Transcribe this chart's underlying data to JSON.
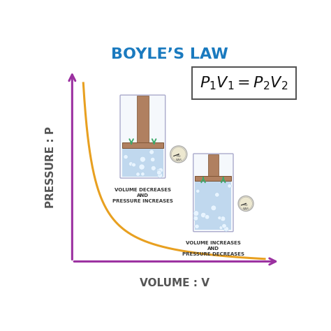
{
  "title": "BOYLE’S LAW",
  "title_color": "#1a7abf",
  "title_fontsize": 16,
  "bg_color": "#ffffff",
  "curve_color": "#e8a020",
  "curve_lw": 2.2,
  "axis_color": "#9b30a0",
  "axis_lw": 2.2,
  "xlabel": "VOLUME : V",
  "ylabel": "PRESSURE : P",
  "label_fontsize": 11,
  "label_color": "#555555",
  "formula": "$P_1V_1=P_2V_2$",
  "formula_fontsize": 16,
  "formula_box_color": "#ffffff",
  "formula_box_edge": "#555555",
  "text1": "VOLUME DECREASES\nAND\nPRESSURE INCREASES",
  "text2": "VOLUME INCREASES\nAND\nPRESSURE DECREASES",
  "text_fontsize": 5.0,
  "text_color": "#333333",
  "cylinder_border_color": "#aaaacc",
  "piston_color": "#b08060",
  "liquid_color": "#c0d8ee",
  "bubble_color": "#e8f4ff",
  "arrow_color": "#3aaa6a",
  "gauge_color": "#ede8d0",
  "gauge_border_color": "#aaaaaa"
}
